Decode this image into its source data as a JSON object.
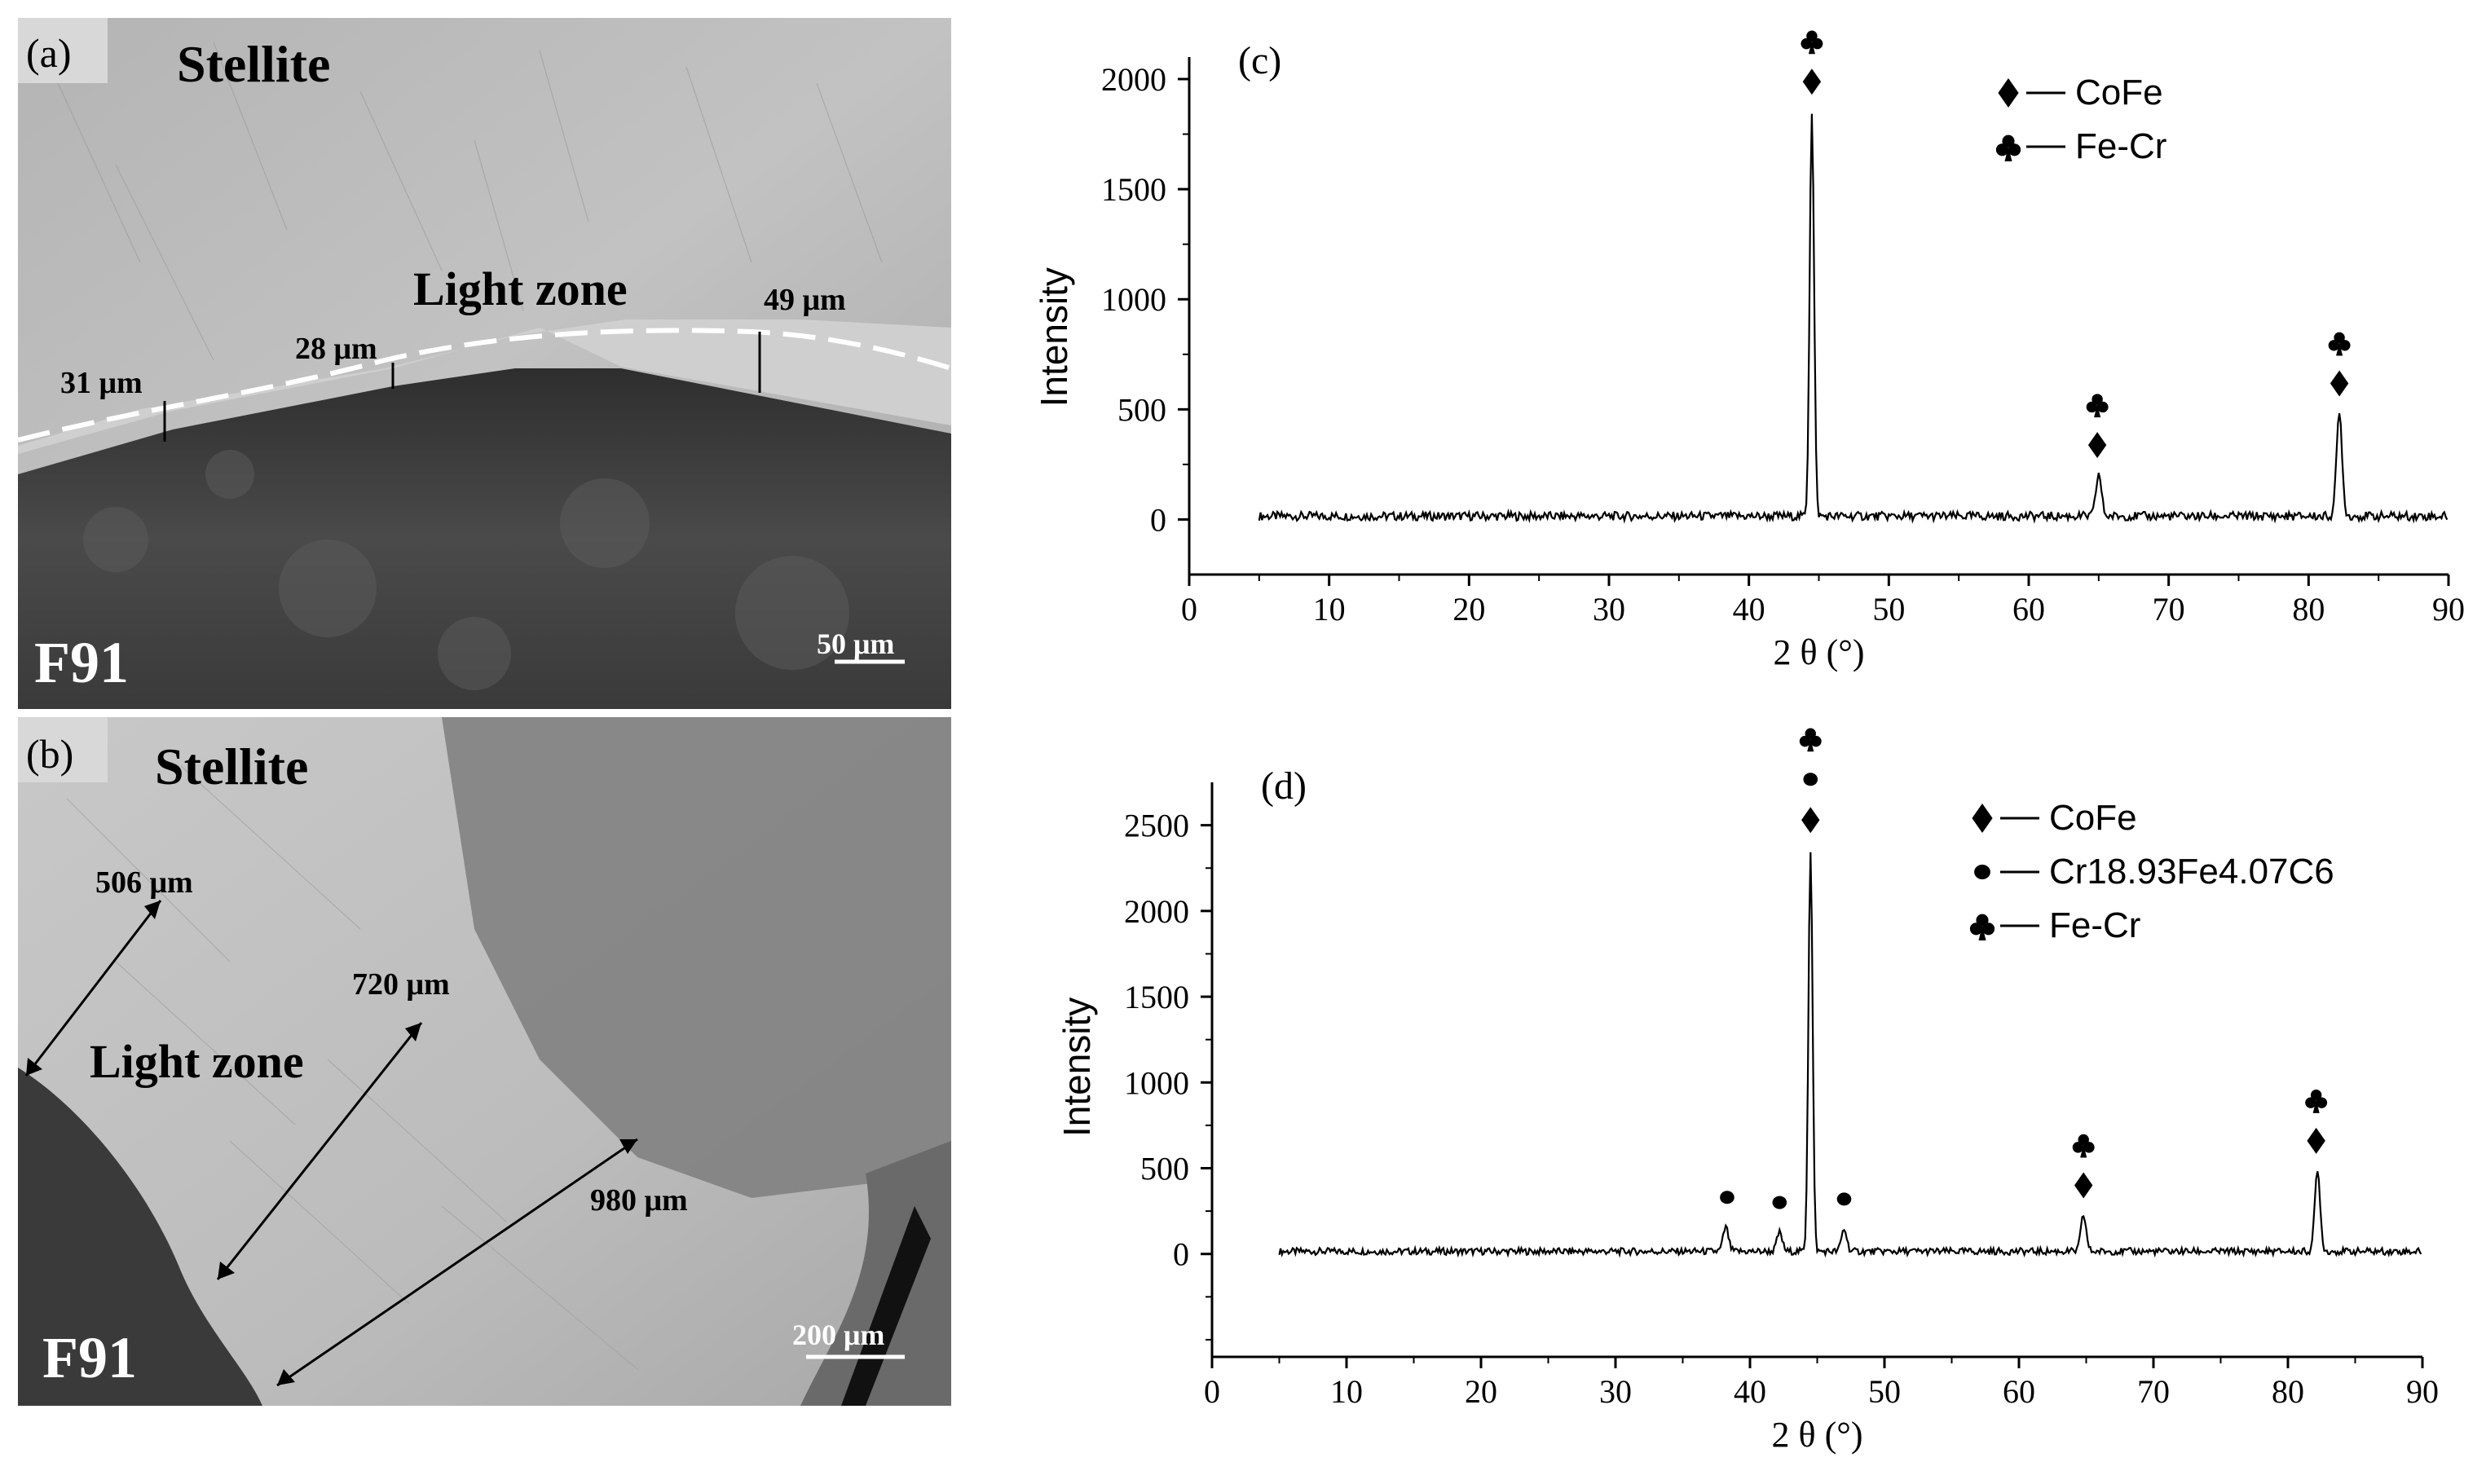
{
  "micrographs": {
    "a": {
      "panel_label": "(a)",
      "top_label": "Stellite",
      "zone_label": "Light zone",
      "base_label": "F91",
      "scale_bar": "50 μm",
      "widths": [
        "31 μm",
        "28 μm",
        "49 μm"
      ]
    },
    "b": {
      "panel_label": "(b)",
      "top_label": "Stellite",
      "zone_label": "Light zone",
      "base_label": "F91",
      "scale_bar": "200 μm",
      "widths": [
        "506 μm",
        "720 μm",
        "980 μm"
      ]
    }
  },
  "chart_data": [
    {
      "panel_label": "(c)",
      "type": "line",
      "xlabel": "2 θ (°)",
      "ylabel": "Intensity",
      "xlim": [
        0,
        90
      ],
      "ylim": [
        -250,
        2100
      ],
      "xticks": [
        0,
        10,
        20,
        30,
        40,
        50,
        60,
        70,
        80,
        90
      ],
      "yticks": [
        0,
        500,
        1000,
        1500,
        2000
      ],
      "baseline": 15,
      "peaks": [
        {
          "x": 44.5,
          "y": 1840
        },
        {
          "x": 65.0,
          "y": 190
        },
        {
          "x": 82.2,
          "y": 470
        }
      ],
      "legend": [
        {
          "marker": "diamond",
          "label": "CoFe"
        },
        {
          "marker": "club",
          "label": "Fe-Cr"
        }
      ],
      "peak_markers": [
        {
          "x": 44.5,
          "markers": [
            "club",
            "diamond"
          ]
        },
        {
          "x": 64.9,
          "markers": [
            "club",
            "diamond"
          ]
        },
        {
          "x": 82.2,
          "markers": [
            "club",
            "diamond"
          ]
        }
      ]
    },
    {
      "panel_label": "(d)",
      "type": "line",
      "xlabel": "2 θ (°)",
      "ylabel": "Intensity",
      "xlim": [
        0,
        90
      ],
      "ylim": [
        -600,
        2750
      ],
      "xticks": [
        0,
        10,
        20,
        30,
        40,
        50,
        60,
        70,
        80,
        90
      ],
      "yticks": [
        0,
        500,
        1000,
        1500,
        2000,
        2500
      ],
      "baseline": 15,
      "peaks": [
        {
          "x": 38.2,
          "y": 140
        },
        {
          "x": 42.2,
          "y": 110
        },
        {
          "x": 44.5,
          "y": 2340
        },
        {
          "x": 47.0,
          "y": 130
        },
        {
          "x": 64.8,
          "y": 210
        },
        {
          "x": 82.2,
          "y": 470
        }
      ],
      "legend": [
        {
          "marker": "diamond",
          "label": "CoFe"
        },
        {
          "marker": "dot",
          "label": "Cr18.93Fe4.07C6"
        },
        {
          "marker": "club",
          "label": "Fe-Cr"
        }
      ],
      "peak_markers": [
        {
          "x": 38.3,
          "markers": [
            "dot"
          ]
        },
        {
          "x": 42.2,
          "markers": [
            "dot"
          ]
        },
        {
          "x": 44.5,
          "markers": [
            "club",
            "dot",
            "diamond"
          ]
        },
        {
          "x": 47.0,
          "markers": [
            "dot"
          ]
        },
        {
          "x": 64.8,
          "markers": [
            "club",
            "diamond"
          ]
        },
        {
          "x": 82.1,
          "markers": [
            "club",
            "diamond"
          ]
        }
      ]
    }
  ]
}
